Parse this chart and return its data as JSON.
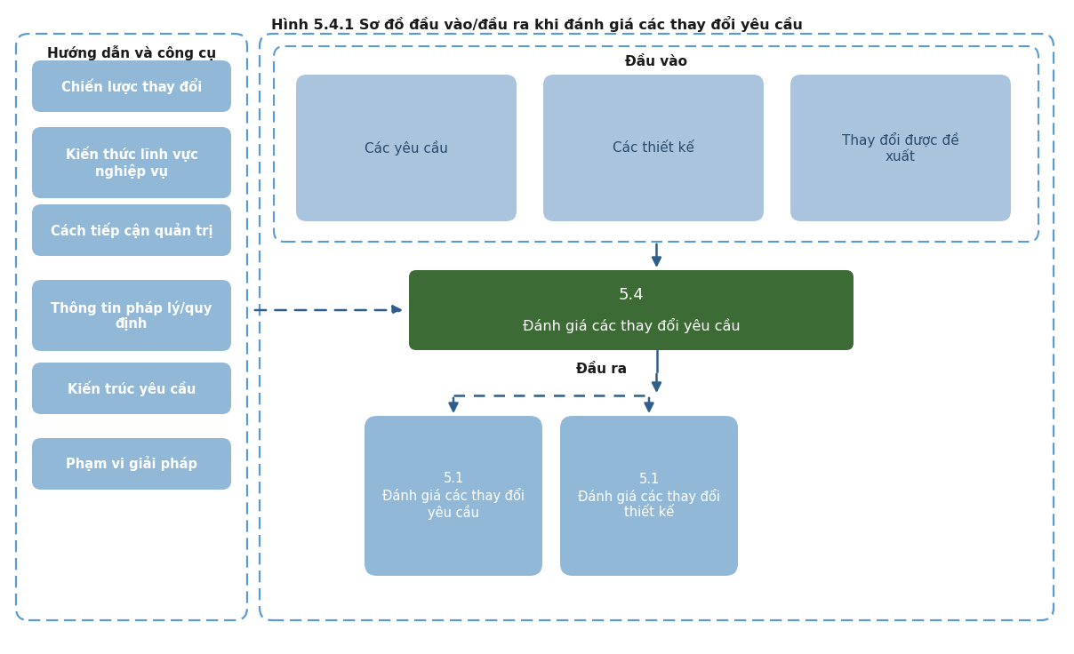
{
  "title": "Hình 5.4.1 Sơ đồ đầu vào/đầu ra khi đánh giá các thay đổi yêu cầu",
  "title_fontsize": 11.5,
  "bg_color": "#ffffff",
  "left_box_color": "#92b8d8",
  "left_box_text_color": "#ffffff",
  "input_box_color": "#aac4de",
  "center_box_color": "#3d6b35",
  "center_box_text_color": "#ffffff",
  "output_box_color": "#92b8d8",
  "output_box_text_color": "#ffffff",
  "dashed_border_color": "#5b9bd5",
  "arrow_color": "#2e5f8a",
  "left_section_label": "Hướng dẫn và công cụ",
  "input_section_label": "Đầu vào",
  "output_section_label": "Đầu ra",
  "left_boxes": [
    "Chiến lược thay đổi",
    "Kiến thức lĩnh vực\nnghiệp vụ",
    "Cách tiếp cận quản trị",
    "Thông tin pháp lý/quy\nđịnh",
    "Kiến trúc yêu cầu",
    "Phạm vi giải pháp"
  ],
  "input_boxes": [
    "Các yêu cầu",
    "Các thiết kế",
    "Thay đổi được đề\nxuất"
  ],
  "center_box_line1": "5.4",
  "center_box_line2": "Đánh giá các thay đổi yêu cầu",
  "output_boxes": [
    "5.1\nĐánh giá các thay đổi\nyêu cầu",
    "5.1\nĐánh giá các thay đổi\nthiết kế"
  ]
}
